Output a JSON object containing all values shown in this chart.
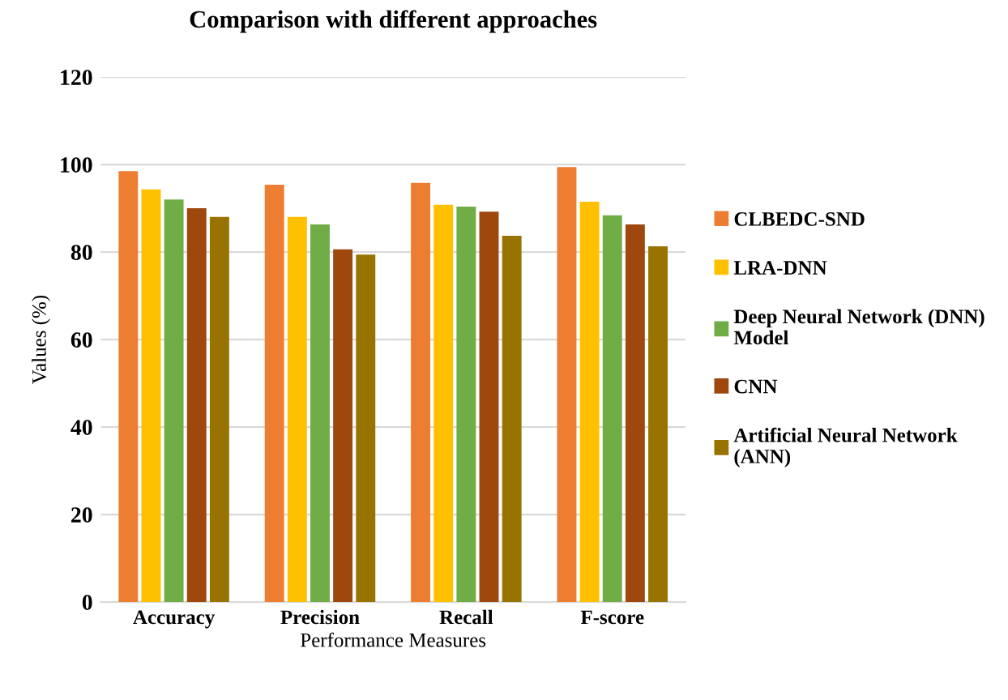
{
  "chart_data": {
    "type": "bar",
    "title": "Comparison with different approaches",
    "xlabel": "Performance Measures",
    "ylabel": "Values (%)",
    "categories": [
      "Accuracy",
      "Precision",
      "Recall",
      "F-score"
    ],
    "series": [
      {
        "name": "CLBEDC-SND",
        "color": "#ed7d31",
        "values": [
          98.5,
          95.4,
          95.8,
          99.4
        ]
      },
      {
        "name": "LRA-DNN",
        "color": "#ffc000",
        "values": [
          94.3,
          88.0,
          90.8,
          91.5
        ]
      },
      {
        "name": "Deep Neural Network (DNN)\nModel",
        "color": "#70ad47",
        "values": [
          92.0,
          86.3,
          90.4,
          88.4
        ]
      },
      {
        "name": "CNN",
        "color": "#9e480e",
        "values": [
          90.0,
          80.6,
          89.2,
          86.3
        ]
      },
      {
        "name": "Artificial Neural Network\n(ANN)",
        "color": "#997300",
        "values": [
          88.0,
          79.4,
          83.7,
          81.3
        ]
      }
    ],
    "ylim": [
      0,
      120
    ],
    "yticks": [
      0,
      20,
      40,
      60,
      80,
      100,
      120
    ],
    "grid": "y",
    "legend": "right"
  }
}
